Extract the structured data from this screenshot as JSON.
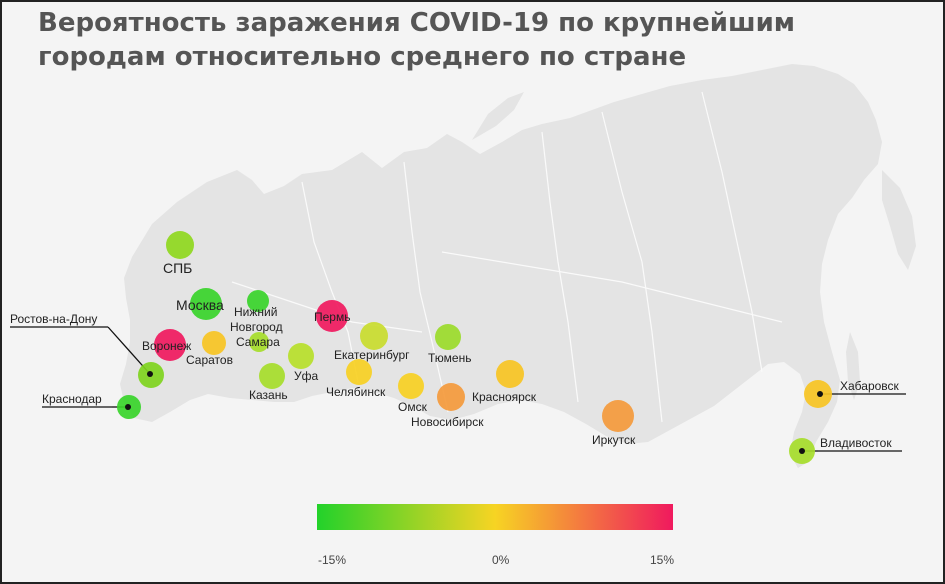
{
  "title": {
    "line1": "Вероятность заражения COVID-19 по крупнейшим",
    "line2": "городам относительно среднего по стране"
  },
  "cities": [
    {
      "name": "СПБ",
      "color": "#8fd81e"
    },
    {
      "name": "Москва",
      "color": "#38d42a"
    },
    {
      "name": "Нижний",
      "name2": "Новгород",
      "color": "#38d42a"
    },
    {
      "name": "Пермь",
      "color": "#f0195e"
    },
    {
      "name": "Воронеж",
      "color": "#f0195e"
    },
    {
      "name": "Саратов",
      "color": "#f7c423"
    },
    {
      "name": "Самара",
      "color": "#a6dd2a"
    },
    {
      "name": "Ростов-на-Дону",
      "color": "#7fd41e"
    },
    {
      "name": "Краснодар",
      "color": "#38d42a"
    },
    {
      "name": "Казань",
      "color": "#a6dd2a"
    },
    {
      "name": "Уфа",
      "color": "#b7df2a"
    },
    {
      "name": "Екатеринбург",
      "color": "#c9dc2e"
    },
    {
      "name": "Тюмень",
      "color": "#9bdb2a"
    },
    {
      "name": "Челябинск",
      "color": "#f7d023"
    },
    {
      "name": "Омск",
      "color": "#f7d023"
    },
    {
      "name": "Новосибирск",
      "color": "#f49a3c"
    },
    {
      "name": "Красноярск",
      "color": "#f7c423"
    },
    {
      "name": "Иркутск",
      "color": "#f49a3c"
    },
    {
      "name": "Хабаровск",
      "color": "#f7c423"
    },
    {
      "name": "Владивосток",
      "color": "#a6dd2a"
    }
  ],
  "legend": {
    "min": "-15%",
    "mid": "0%",
    "max": "15%",
    "colors": [
      "#22d22a",
      "#f7d423",
      "#f0195e"
    ]
  },
  "map_color": "#e4e4e4"
}
